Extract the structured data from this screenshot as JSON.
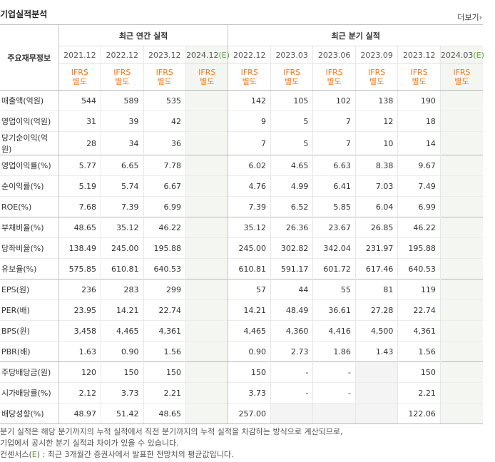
{
  "header": {
    "title": "기업실적분석",
    "more_label": "더보기",
    "more_icon": "chevron-right-icon"
  },
  "table": {
    "row_header_label": "주요재무정보",
    "annual_group_label": "최근 연간 실적",
    "quarter_group_label": "최근 분기 실적",
    "annual_periods": [
      "2021.12",
      "2022.12",
      "2023.12",
      "2024.12"
    ],
    "quarter_periods": [
      "2022.12",
      "2023.03",
      "2023.06",
      "2023.09",
      "2023.12",
      "2024.03"
    ],
    "estimate_mark": "(E)",
    "ifrs_line1": "IFRS",
    "ifrs_line2": "별도",
    "rows": [
      {
        "label": "매출액(억원)",
        "values": [
          "544",
          "589",
          "535",
          "",
          "142",
          "105",
          "102",
          "138",
          "190",
          ""
        ]
      },
      {
        "label": "영업이익(억원)",
        "values": [
          "31",
          "39",
          "42",
          "",
          "9",
          "5",
          "7",
          "12",
          "18",
          ""
        ]
      },
      {
        "label": "당기순이익(억원)",
        "values": [
          "28",
          "34",
          "36",
          "",
          "7",
          "5",
          "7",
          "10",
          "14",
          ""
        ]
      },
      {
        "label": "영업이익률(%)",
        "values": [
          "5.77",
          "6.65",
          "7.78",
          "",
          "6.02",
          "4.65",
          "6.63",
          "8.38",
          "9.67",
          ""
        ]
      },
      {
        "label": "순이익률(%)",
        "values": [
          "5.19",
          "5.74",
          "6.67",
          "",
          "4.76",
          "4.99",
          "6.41",
          "7.03",
          "7.49",
          ""
        ]
      },
      {
        "label": "ROE(%)",
        "values": [
          "7.68",
          "7.39",
          "6.99",
          "",
          "7.39",
          "6.52",
          "5.85",
          "6.04",
          "6.99",
          ""
        ]
      },
      {
        "label": "부채비율(%)",
        "values": [
          "48.65",
          "35.12",
          "46.22",
          "",
          "35.12",
          "26.36",
          "23.67",
          "26.85",
          "46.22",
          ""
        ]
      },
      {
        "label": "당좌비율(%)",
        "values": [
          "138.49",
          "245.00",
          "195.88",
          "",
          "245.00",
          "302.82",
          "342.04",
          "231.97",
          "195.88",
          ""
        ]
      },
      {
        "label": "유보율(%)",
        "values": [
          "575.85",
          "610.81",
          "640.53",
          "",
          "610.81",
          "591.17",
          "601.72",
          "617.46",
          "640.53",
          ""
        ]
      },
      {
        "label": "EPS(원)",
        "values": [
          "236",
          "283",
          "299",
          "",
          "57",
          "44",
          "55",
          "81",
          "119",
          ""
        ]
      },
      {
        "label": "PER(배)",
        "values": [
          "23.95",
          "14.21",
          "22.74",
          "",
          "14.21",
          "48.49",
          "36.61",
          "27.28",
          "22.74",
          ""
        ]
      },
      {
        "label": "BPS(원)",
        "values": [
          "3,458",
          "4,465",
          "4,361",
          "",
          "4,465",
          "4,360",
          "4,416",
          "4,500",
          "4,361",
          ""
        ]
      },
      {
        "label": "PBR(배)",
        "values": [
          "1.63",
          "0.90",
          "1.56",
          "",
          "0.90",
          "2.73",
          "1.86",
          "1.43",
          "1.56",
          ""
        ]
      },
      {
        "label": "주당배당금(원)",
        "values": [
          "120",
          "150",
          "150",
          "",
          "150",
          "-",
          "-",
          "",
          "150",
          ""
        ]
      },
      {
        "label": "시가배당률(%)",
        "values": [
          "2.12",
          "3.73",
          "2.21",
          "",
          "3.73",
          "-",
          "-",
          "",
          "2.21",
          ""
        ]
      },
      {
        "label": "배당성향(%)",
        "values": [
          "48.97",
          "51.42",
          "48.65",
          "",
          "257.00",
          "",
          "",
          "",
          "122.06",
          ""
        ]
      }
    ]
  },
  "notes": {
    "line1": "분기 실적은 해당 분기까지의 누적 실적에서 직전 분기까지의 누적 실적을 차감하는 방식으로 계산되므로,",
    "line2": "기업에서 공시한 분기 실적과 차이가 있을 수 있습니다.",
    "line3_prefix": "컨센서스(",
    "line3_e": "E",
    "line3_suffix": ") : 최근 3개월간 증권사에서 발표한 전망치의 평균값입니다."
  }
}
